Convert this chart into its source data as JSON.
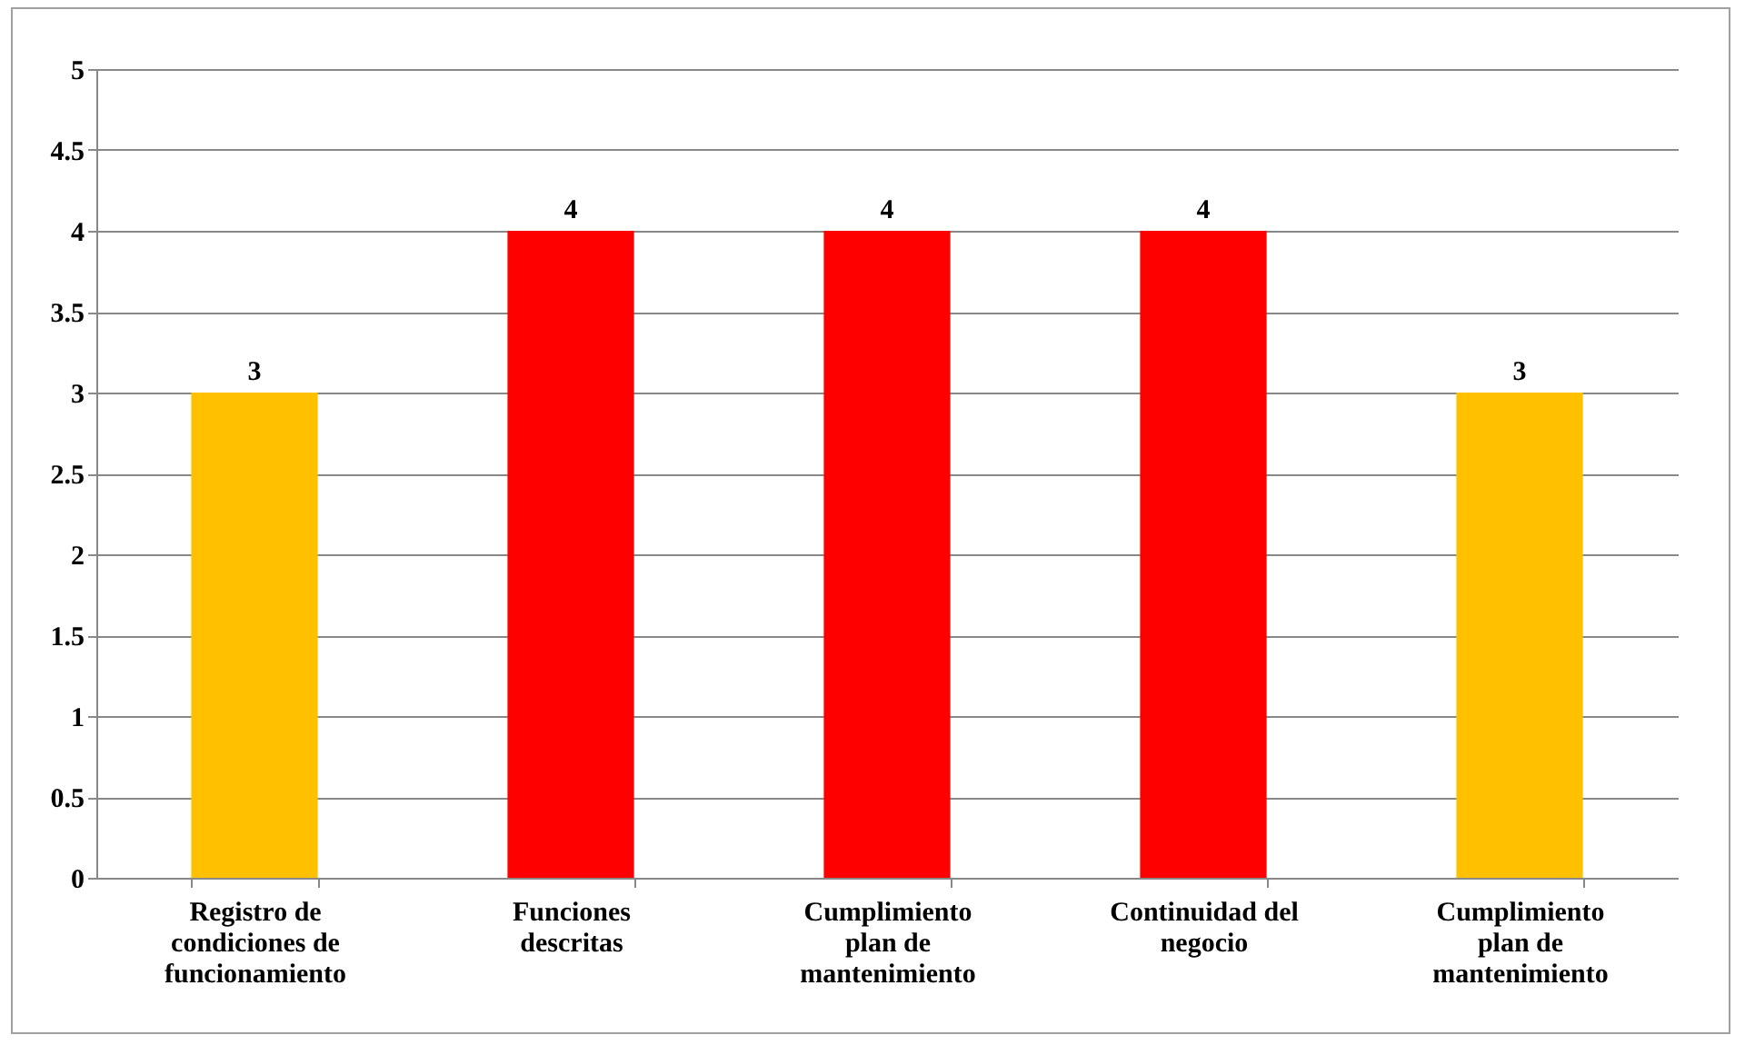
{
  "chart_data": {
    "type": "bar",
    "categories": [
      "Registro de condiciones de funcionamiento",
      "Funciones descritas",
      "Cumplimiento plan de mantenimiento",
      "Continuidad del negocio",
      "Cumplimiento plan de mantenimiento"
    ],
    "values": [
      3,
      4,
      4,
      4,
      3
    ],
    "colors": [
      "#ffc000",
      "#ff0000",
      "#ff0000",
      "#ff0000",
      "#ffc000"
    ],
    "ylim": [
      0,
      5
    ],
    "yticks": [
      0,
      0.5,
      1,
      1.5,
      2,
      2.5,
      3,
      3.5,
      4,
      4.5,
      5
    ],
    "grid": "y",
    "data_labels": true
  }
}
